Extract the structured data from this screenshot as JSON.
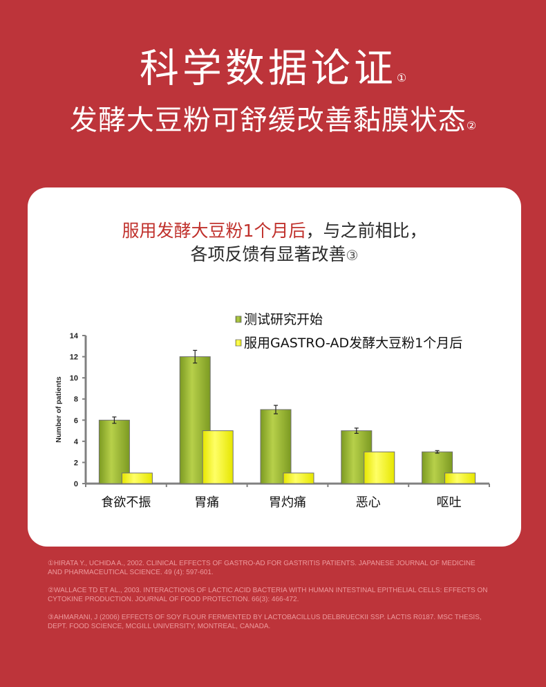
{
  "header": {
    "title": "科学数据论证",
    "title_mark": "①",
    "subtitle": "发酵大豆粉可舒缓改善黏膜状态",
    "subtitle_mark": "②"
  },
  "card": {
    "line1_red": "服用发酵大豆粉1个月后",
    "line1_rest": "，与之前相比，",
    "line2": "各项反馈有显著改善",
    "line2_mark": "③"
  },
  "chart_data": {
    "type": "bar",
    "ylabel": "Number of patients",
    "xlabel": "",
    "ylim": [
      0,
      14
    ],
    "yticks": [
      0,
      2,
      4,
      6,
      8,
      10,
      12,
      14
    ],
    "categories": [
      "食欲不振",
      "胃痛",
      "胃灼痛",
      "恶心",
      "呕吐"
    ],
    "series": [
      {
        "name": "测试研究开始",
        "values": [
          6,
          12,
          7,
          5,
          3
        ],
        "errors": [
          0.3,
          0.6,
          0.4,
          0.25,
          0.12
        ],
        "color": "#7c9a22",
        "color_light": "#b7d04a"
      },
      {
        "name": "服用GASTRO-AD发酵大豆粉1个月后",
        "values": [
          1,
          5,
          1,
          3,
          1
        ],
        "color": "#e6e600",
        "color_light": "#ffff66"
      }
    ],
    "legend_position": "top-right",
    "grid": false
  },
  "references": [
    "①HIRATA Y., UCHIDA A., 2002. CLINICAL EFFECTS OF GASTRO-AD FOR GASTRITIS PATIENTS. JAPANESE JOURNAL OF MEDICINE AND PHARMACEUTICAL SCIENCE. 49 (4): 597-601.",
    "②WALLACE TD ET AL., 2003. INTERACTIONS OF LACTIC ACID BACTERIA WITH HUMAN INTESTINAL EPITHELIAL CELLS: EFFECTS ON CYTOKINE PRODUCTION. JOURNAL OF FOOD PROTECTION. 66(3): 466-472.",
    "③AHMARANI, J (2006) EFFECTS OF SOY FLOUR FERMENTED BY LACTOBACILLUS DELBRUECKII SSP. LACTIS R0187. MSC THESIS, DEPT. FOOD SCIENCE, MCGILL UNIVERSITY, MONTREAL, CANADA."
  ],
  "colors": {
    "background": "#bd343a",
    "card": "#ffffff",
    "accent_red": "#c0312c",
    "reference_text": "#ee9a9d"
  }
}
